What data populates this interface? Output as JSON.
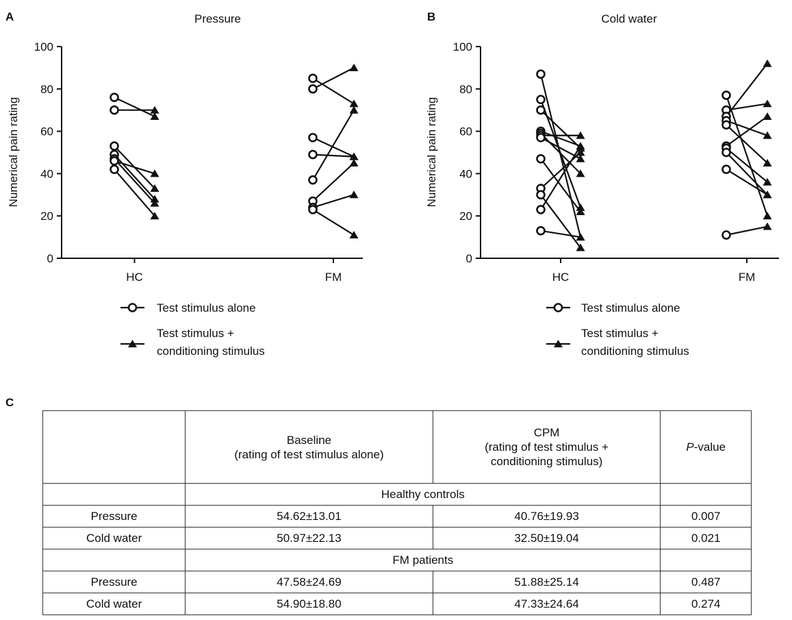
{
  "chart_data": [
    {
      "type": "line",
      "panel_letter": "A",
      "title": "Pressure",
      "ylabel": "Numerical pain rating",
      "xlabel": "",
      "ylim": [
        0,
        100
      ],
      "yticks": [
        0,
        20,
        40,
        60,
        80,
        100
      ],
      "groups": [
        "HC",
        "FM"
      ],
      "series": [
        {
          "name": "Test stimulus alone",
          "marker": "open-circle"
        },
        {
          "name": "Test stimulus + conditioning stimulus",
          "marker": "filled-triangle"
        }
      ],
      "pairs": {
        "HC": [
          [
            76,
            67
          ],
          [
            70,
            70
          ],
          [
            53,
            33
          ],
          [
            49,
            28
          ],
          [
            47,
            26
          ],
          [
            46,
            40
          ],
          [
            42,
            20
          ]
        ],
        "FM": [
          [
            85,
            73
          ],
          [
            80,
            90
          ],
          [
            57,
            48
          ],
          [
            49,
            48
          ],
          [
            37,
            70
          ],
          [
            27,
            45
          ],
          [
            24,
            30
          ],
          [
            23,
            11
          ]
        ]
      },
      "legend": {
        "alone_label": "Test stimulus alone",
        "conditioned_line1": "Test stimulus +",
        "conditioned_line2": "conditioning stimulus"
      }
    },
    {
      "type": "line",
      "panel_letter": "B",
      "title": "Cold water",
      "ylabel": "Numerical pain rating",
      "xlabel": "",
      "ylim": [
        0,
        100
      ],
      "yticks": [
        0,
        20,
        40,
        60,
        80,
        100
      ],
      "groups": [
        "HC",
        "FM"
      ],
      "series": [
        {
          "name": "Test stimulus alone",
          "marker": "open-circle"
        },
        {
          "name": "Test stimulus + conditioning stimulus",
          "marker": "filled-triangle"
        }
      ],
      "pairs": {
        "HC": [
          [
            87,
            10
          ],
          [
            75,
            24
          ],
          [
            70,
            52
          ],
          [
            60,
            53
          ],
          [
            59,
            40
          ],
          [
            58,
            58
          ],
          [
            57,
            47
          ],
          [
            47,
            22
          ],
          [
            33,
            50
          ],
          [
            30,
            5
          ],
          [
            23,
            53
          ],
          [
            13,
            10
          ]
        ],
        "FM": [
          [
            77,
            20
          ],
          [
            70,
            73
          ],
          [
            67,
            92
          ],
          [
            65,
            58
          ],
          [
            63,
            45
          ],
          [
            53,
            67
          ],
          [
            52,
            36
          ],
          [
            50,
            30
          ],
          [
            42,
            30
          ],
          [
            11,
            15
          ]
        ]
      },
      "legend": {
        "alone_label": "Test stimulus alone",
        "conditioned_line1": "Test stimulus +",
        "conditioned_line2": "conditioning stimulus"
      }
    }
  ],
  "table": {
    "letter": "C",
    "headers": {
      "blank": "",
      "baseline_line1": "Baseline",
      "baseline_line2": "(rating of test stimulus alone)",
      "cpm_line1": "CPM",
      "cpm_line2": "(rating of test stimulus +",
      "cpm_line3": "conditioning stimulus)",
      "p_letter": "P",
      "p_rest": "-value"
    },
    "sections": [
      {
        "title": "Healthy controls",
        "rows": [
          {
            "label": "Pressure",
            "baseline": "54.62±13.01",
            "cpm": "40.76±19.93",
            "p": "0.007"
          },
          {
            "label": "Cold water",
            "baseline": "50.97±22.13",
            "cpm": "32.50±19.04",
            "p": "0.021"
          }
        ]
      },
      {
        "title": "FM patients",
        "rows": [
          {
            "label": "Pressure",
            "baseline": "47.58±24.69",
            "cpm": "51.88±25.14",
            "p": "0.487"
          },
          {
            "label": "Cold water",
            "baseline": "54.90±18.80",
            "cpm": "47.33±24.64",
            "p": "0.274"
          }
        ]
      }
    ]
  }
}
